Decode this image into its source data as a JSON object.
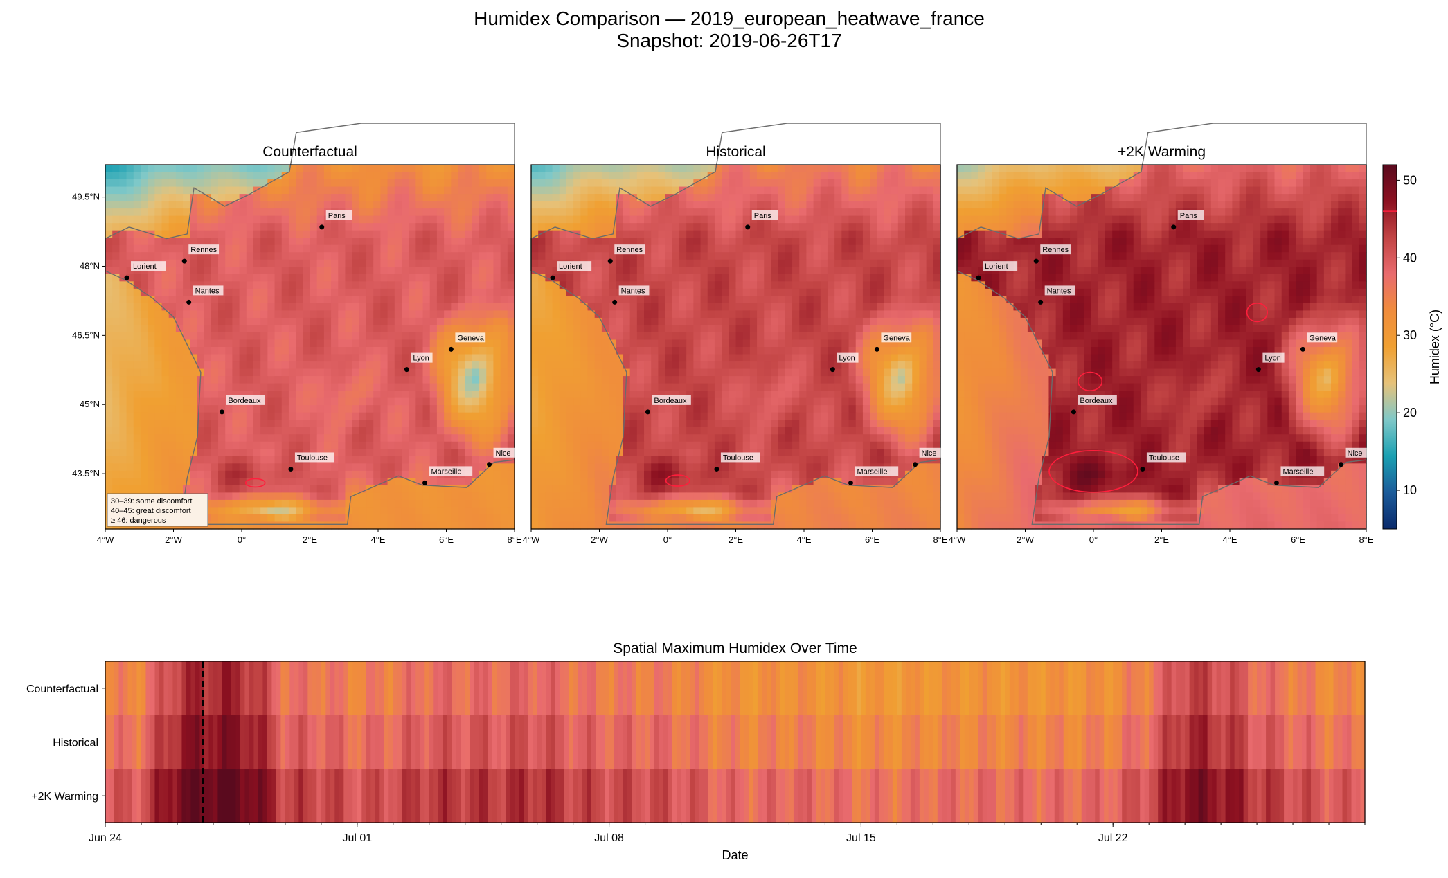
{
  "figure": {
    "title_line1": "Humidex Comparison — 2019_european_heatwave_france",
    "title_line2": "Snapshot: 2019-06-26T17"
  },
  "chart_data": [
    {
      "type": "heatmap",
      "kind": "map",
      "panels": [
        {
          "title": "Counterfactual",
          "scenario_offset": -2.5
        },
        {
          "title": "Historical",
          "scenario_offset": 0
        },
        {
          "title": "+2K Warming",
          "scenario_offset": 3.5
        }
      ],
      "lon_range": [
        -4,
        8
      ],
      "lat_range": [
        42.3,
        50.2
      ],
      "x_ticks": [
        {
          "value": -4,
          "label": "4°W"
        },
        {
          "value": -2,
          "label": "2°W"
        },
        {
          "value": 0,
          "label": "0°"
        },
        {
          "value": 2,
          "label": "2°E"
        },
        {
          "value": 4,
          "label": "4°E"
        },
        {
          "value": 6,
          "label": "6°E"
        },
        {
          "value": 8,
          "label": "8°E"
        }
      ],
      "y_ticks": [
        {
          "value": 49.5,
          "label": "49.5°N"
        },
        {
          "value": 48,
          "label": "48°N"
        },
        {
          "value": 46.5,
          "label": "46.5°N"
        },
        {
          "value": 45,
          "label": "45°N"
        },
        {
          "value": 43.5,
          "label": "43.5°N"
        }
      ],
      "cities": [
        {
          "name": "Paris",
          "lon": 2.35,
          "lat": 48.85
        },
        {
          "name": "Rennes",
          "lon": -1.68,
          "lat": 48.11
        },
        {
          "name": "Lorient",
          "lon": -3.37,
          "lat": 47.75
        },
        {
          "name": "Nantes",
          "lon": -1.55,
          "lat": 47.22
        },
        {
          "name": "Geneva",
          "lon": 6.14,
          "lat": 46.2
        },
        {
          "name": "Lyon",
          "lon": 4.84,
          "lat": 45.76
        },
        {
          "name": "Bordeaux",
          "lon": -0.58,
          "lat": 44.84
        },
        {
          "name": "Toulouse",
          "lon": 1.44,
          "lat": 43.6
        },
        {
          "name": "Marseille",
          "lon": 5.37,
          "lat": 43.3
        },
        {
          "name": "Nice",
          "lon": 7.26,
          "lat": 43.7
        }
      ],
      "legend_lines": [
        "30–39: some discomfort",
        "40–45: great discomfort",
        "≥ 46: dangerous"
      ],
      "contour_threshold": 46,
      "colorbar": {
        "label": "Humidex (°C)",
        "range": [
          5,
          52
        ],
        "ticks": [
          10,
          20,
          30,
          40,
          50
        ]
      }
    },
    {
      "type": "heatmap",
      "kind": "timeline",
      "title": "Spatial Maximum Humidex Over Time",
      "xlabel": "Date",
      "rows": [
        "Counterfactual",
        "Historical",
        "+2K Warming"
      ],
      "x_range_days": [
        0,
        35
      ],
      "x_ticks": [
        {
          "value": 0,
          "label": "Jun 24"
        },
        {
          "value": 7,
          "label": "Jul 01"
        },
        {
          "value": 14,
          "label": "Jul 08"
        },
        {
          "value": 21,
          "label": "Jul 15"
        },
        {
          "value": 28,
          "label": "Jul 22"
        }
      ],
      "snapshot_day": 2.71,
      "daily_max_historical": [
        36,
        37,
        46,
        48,
        47,
        39,
        39,
        37,
        38,
        40,
        40,
        40,
        41,
        39,
        38,
        38,
        37,
        35,
        34,
        35,
        34,
        33,
        33,
        34,
        34,
        34,
        34,
        34,
        35,
        38,
        45,
        44,
        40,
        38,
        36
      ],
      "row_offsets": [
        -2.5,
        0,
        3.5
      ]
    }
  ],
  "colors": {
    "colormap": [
      "#0a2a6b",
      "#1b5b9a",
      "#1aa0b2",
      "#7fc8c8",
      "#e6c27a",
      "#f0a032",
      "#f08c3c",
      "#e96b6e",
      "#c24444",
      "#8c1020",
      "#5a0a1e"
    ],
    "contour": "#ff1e3c",
    "coast": "#6b6b6b"
  }
}
